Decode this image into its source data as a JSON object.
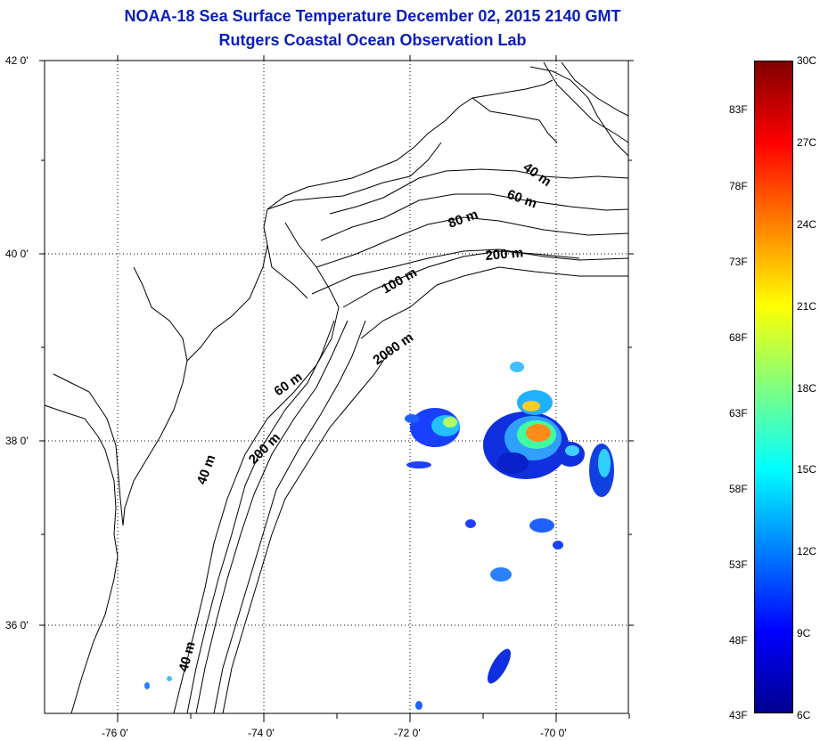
{
  "title": {
    "line1": "NOAA-18 Sea Surface Temperature December 02, 2015 2140 GMT",
    "line2": "Rutgers Coastal Ocean Observation Lab"
  },
  "map": {
    "lat_labels": [
      "42 0'",
      "40 0'",
      "38 0'",
      "36 0'"
    ],
    "lon_labels": [
      "-76 0'",
      "-74 0'",
      "-72 0'",
      "-70 0'"
    ],
    "isobath_labels": [
      "40 m",
      "60 m",
      "80 m",
      "200 m",
      "100 m",
      "2000 m",
      "60 m",
      "200 m",
      "40 m",
      "40 m"
    ]
  },
  "colorbar": {
    "celsius_labels": [
      "30C",
      "27C",
      "24C",
      "21C",
      "18C",
      "15C",
      "12C",
      "9C",
      "6C"
    ],
    "fahrenheit_labels": [
      "83F",
      "78F",
      "73F",
      "68F",
      "63F",
      "58F",
      "53F",
      "48F",
      "43F"
    ],
    "colors": [
      "#00008f",
      "#0000ff",
      "#0080ff",
      "#00ffff",
      "#80ff80",
      "#ffff00",
      "#ff8000",
      "#ff0000",
      "#800000"
    ]
  }
}
